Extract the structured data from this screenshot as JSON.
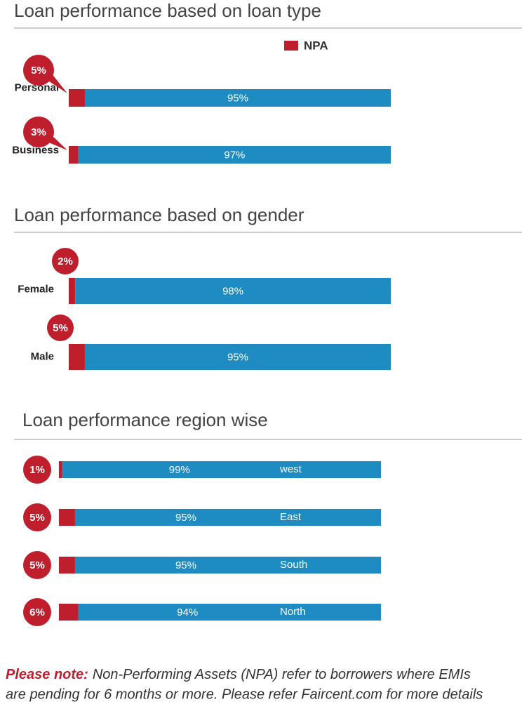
{
  "chart_data": [
    {
      "type": "stacked-bar",
      "orientation": "horizontal",
      "title": "Loan performance based on loan type",
      "categories": [
        "Personal",
        "Business"
      ],
      "xlim": [
        0,
        100
      ],
      "series": [
        {
          "name": "NPA",
          "color": "#bf1e2d",
          "values": [
            5,
            3
          ],
          "value_labels": [
            "5%",
            "3%"
          ]
        },
        {
          "color": "#1e8bc3",
          "values": [
            95,
            97
          ],
          "value_labels": [
            "95%",
            "97%"
          ]
        }
      ]
    },
    {
      "type": "stacked-bar",
      "orientation": "horizontal",
      "title": "Loan performance based on gender",
      "categories": [
        "Female",
        "Male"
      ],
      "xlim": [
        0,
        100
      ],
      "series": [
        {
          "color": "#bf1e2d",
          "values": [
            2,
            5
          ],
          "value_labels": [
            "2%",
            "5%"
          ]
        },
        {
          "color": "#1e8bc3",
          "values": [
            98,
            95
          ],
          "value_labels": [
            "98%",
            "95%"
          ]
        }
      ]
    },
    {
      "type": "stacked-bar",
      "orientation": "horizontal",
      "title": "Loan performance region wise",
      "categories": [
        "west",
        "East",
        "South",
        "North"
      ],
      "xlim": [
        0,
        100
      ],
      "series": [
        {
          "color": "#bf1e2d",
          "values": [
            1,
            5,
            5,
            6
          ],
          "value_labels": [
            "1%",
            "5%",
            "5%",
            "6%"
          ]
        },
        {
          "color": "#1e8bc3",
          "values": [
            99,
            95,
            95,
            94
          ],
          "value_labels": [
            "99%",
            "95%",
            "95%",
            "94%"
          ]
        }
      ]
    }
  ],
  "note": {
    "lead": "Please note:",
    "lines": [
      "Non-Performing Assets (NPA) refer to borrowers where EMIs",
      "are pending for 6 months or more. Please refer Faircent.com for more details"
    ]
  }
}
